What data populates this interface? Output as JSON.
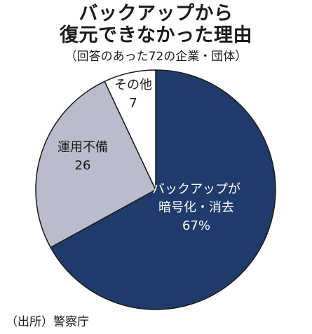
{
  "title_line1": "バックアップから",
  "title_line2": "復元できなかった理由",
  "subtitle": "（回答のあった72の企業・団体）",
  "source": "（出所）警察庁",
  "colors": {
    "slice_encrypted": "#1f3b6b",
    "slice_ops": "#b9bccb",
    "slice_other": "#ffffff",
    "stroke": "#1a1a1a"
  },
  "chart_data": {
    "type": "pie",
    "start": "12 o'clock, clockwise",
    "slices": [
      {
        "label_lines": [
          "バックアップが",
          "暗号化・消去"
        ],
        "value_label": "67%",
        "value": 67
      },
      {
        "label_lines": [
          "運用不備"
        ],
        "value_label": "26",
        "value": 26
      },
      {
        "label_lines": [
          "その他"
        ],
        "value_label": "7",
        "value": 7
      }
    ]
  }
}
